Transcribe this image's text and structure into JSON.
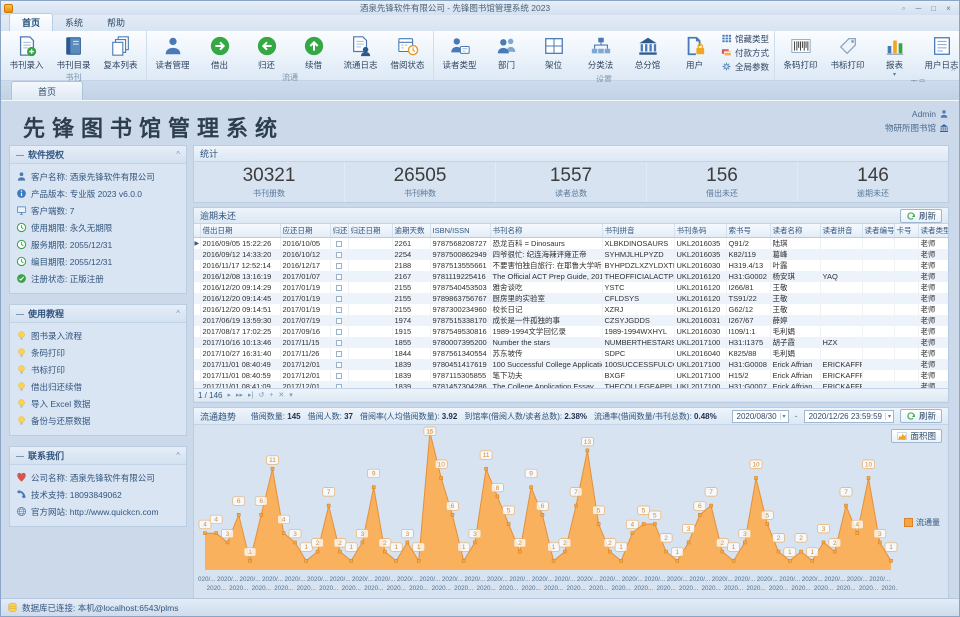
{
  "window": {
    "title": "酒泉先锋软件有限公司 - 先锋图书馆管理系统 2023",
    "controls": [
      {
        "name": "options",
        "glyph": "▫"
      },
      {
        "name": "minimize",
        "glyph": "─"
      },
      {
        "name": "maximize",
        "glyph": "□"
      },
      {
        "name": "close",
        "glyph": "×"
      }
    ]
  },
  "menu_tabs": [
    {
      "label": "首页",
      "active": true
    },
    {
      "label": "系统",
      "active": false
    },
    {
      "label": "帮助",
      "active": false
    }
  ],
  "ribbon": {
    "groups": [
      {
        "label": "书刊",
        "buttons": [
          {
            "label": "书刊录入",
            "icon": "doc-add"
          },
          {
            "label": "书刊目录",
            "icon": "book"
          },
          {
            "label": "复本列表",
            "icon": "copies"
          }
        ]
      },
      {
        "label": "流通",
        "buttons": [
          {
            "label": "读者管理",
            "icon": "reader"
          },
          {
            "label": "借出",
            "icon": "lend"
          },
          {
            "label": "归还",
            "icon": "return"
          },
          {
            "label": "续借",
            "icon": "renew"
          },
          {
            "label": "流通日志",
            "icon": "doc-log"
          },
          {
            "label": "借阅状态",
            "icon": "cal-clock"
          }
        ]
      },
      {
        "label": "设置",
        "buttons": [
          {
            "label": "读者类型",
            "icon": "person-card"
          },
          {
            "label": "部门",
            "icon": "people"
          },
          {
            "label": "架位",
            "icon": "shelf"
          },
          {
            "label": "分类法",
            "icon": "sitemap"
          },
          {
            "label": "总分馆",
            "icon": "bank"
          },
          {
            "label": "用户",
            "icon": "user-lock"
          }
        ],
        "small_buttons": [
          {
            "label": "馆藏类型",
            "icon": "grid"
          },
          {
            "label": "付款方式",
            "icon": "pay"
          },
          {
            "label": "全局参数",
            "icon": "gear"
          }
        ]
      },
      {
        "label": "工具",
        "buttons": [
          {
            "label": "条码打印",
            "icon": "barcode"
          },
          {
            "label": "书标打印",
            "icon": "tag"
          },
          {
            "label": "报表",
            "icon": "bars",
            "dropdown": true
          },
          {
            "label": "用户日志",
            "icon": "log"
          },
          {
            "label": "界面主题",
            "icon": "theme",
            "dropdown": true
          },
          {
            "label": "退出系统",
            "icon": "exit"
          }
        ]
      }
    ]
  },
  "doc_tab": "首页",
  "page": {
    "title": "先锋图书馆管理系统",
    "user": "Admin",
    "library": "物研所图书馆"
  },
  "sidebar": {
    "panels": [
      {
        "title": "软件授权",
        "rows": [
          {
            "icon": "reader",
            "label": "客户名称:",
            "value": "酒泉先锋软件有限公司"
          },
          {
            "icon": "info",
            "label": "产品版本:",
            "value": "专业版 2023 v6.0.0"
          },
          {
            "icon": "monitor",
            "label": "客户端数:",
            "value": "7"
          },
          {
            "icon": "clock",
            "label": "使用期限:",
            "value": "永久无期限"
          },
          {
            "icon": "clock",
            "label": "服务期限:",
            "value": "2055/12/31"
          },
          {
            "icon": "clock",
            "label": "编目期限:",
            "value": "2055/12/31"
          },
          {
            "icon": "check",
            "label": "注册状态:",
            "value": "正版注册"
          }
        ]
      },
      {
        "title": "使用教程",
        "rows": [
          {
            "icon": "bulb",
            "label": "图书录入流程",
            "value": ""
          },
          {
            "icon": "bulb",
            "label": "条码打印",
            "value": ""
          },
          {
            "icon": "bulb",
            "label": "书标打印",
            "value": ""
          },
          {
            "icon": "bulb",
            "label": "借出归还续借",
            "value": ""
          },
          {
            "icon": "bulb",
            "label": "导入 Excel 数据",
            "value": ""
          },
          {
            "icon": "bulb",
            "label": "备份与还原数据",
            "value": ""
          }
        ]
      },
      {
        "title": "联系我们",
        "rows": [
          {
            "icon": "heart",
            "label": "公司名称:",
            "value": "酒泉先锋软件有限公司"
          },
          {
            "icon": "phone",
            "label": "技术支持:",
            "value": "18093849062"
          },
          {
            "icon": "globe",
            "label": "官方网站:",
            "value": "http://www.quickcn.com"
          }
        ]
      }
    ]
  },
  "stats": {
    "title": "统计",
    "items": [
      {
        "value": "30321",
        "label": "书刊册数"
      },
      {
        "value": "26505",
        "label": "书刊种数"
      },
      {
        "value": "1557",
        "label": "读者总数"
      },
      {
        "value": "156",
        "label": "借出未还"
      },
      {
        "value": "146",
        "label": "逾期未还"
      }
    ]
  },
  "overdue": {
    "title": "逾期未还",
    "refresh_label": "刷新",
    "columns": [
      "借出日期",
      "应还日期",
      "归还",
      "归还日期",
      "逾期天数",
      "ISBN/ISSN",
      "书刊名称",
      "书刊拼音",
      "书刊条码",
      "索书号",
      "读者名称",
      "读者拼音",
      "读者编号",
      "卡号",
      "读者类型"
    ],
    "rows": [
      [
        "2016/09/05 15:22:26",
        "2016/10/05",
        "",
        "",
        "2261",
        "9787568208727",
        "恐龙百科 = Dinosaurs",
        "XLBKDINOSAURS",
        "UKL2016035",
        "Q91/2",
        "陆琪",
        "",
        "",
        "",
        "老师"
      ],
      [
        "2016/09/12 14:33:20",
        "2016/10/12",
        "",
        "",
        "2254",
        "9787500862949",
        "四爷很忙: 纪连海辣评雍正帝",
        "SYHMJLHLPYZD",
        "UKL2016035",
        "K82/119",
        "葛峰",
        "",
        "",
        "",
        "老师"
      ],
      [
        "2016/11/17 12:52:14",
        "2016/12/17",
        "",
        "",
        "2188",
        "9787513555661",
        "不要害怕独自旅行: 在耶鲁大学听名人演讲",
        "BYHPDZLXZYLDXTMRYJ",
        "UKL2016030",
        "H319.4/13",
        "叶露",
        "",
        "",
        "",
        "老师"
      ],
      [
        "2016/12/08 13:16:19",
        "2017/01/07",
        "",
        "",
        "2167",
        "9781119225416",
        "The Official ACT Prep Guide, 2016 - 2017",
        "THEOFFICIALACTPREPGU",
        "UKL2016120",
        "H31:G0002",
        "杨安琪",
        "YAQ",
        "",
        "",
        "老师"
      ],
      [
        "2016/12/20 09:14:29",
        "2017/01/19",
        "",
        "",
        "2155",
        "9787540453503",
        "雅舍谈吃",
        "YSTC",
        "UKL2016120",
        "I266/81",
        "王敬",
        "",
        "",
        "",
        "老师"
      ],
      [
        "2016/12/20 09:14:45",
        "2017/01/19",
        "",
        "",
        "2155",
        "9789863756767",
        "厨房里的实验室",
        "CFLDSYS",
        "UKL2016120",
        "TS91/22",
        "王敬",
        "",
        "",
        "",
        "老师"
      ],
      [
        "2016/12/20 09:14:51",
        "2017/01/19",
        "",
        "",
        "2155",
        "9787300234960",
        "校长日记",
        "XZRJ",
        "UKL2016120",
        "G62/12",
        "王敬",
        "",
        "",
        "",
        "老师"
      ],
      [
        "2017/06/19 13:59:30",
        "2017/07/19",
        "",
        "",
        "1974",
        "9787515338170",
        "成长是一件孤独的事",
        "CZSYJGDDS",
        "UKL2016031",
        "I267/67",
        "薛婷",
        "",
        "",
        "",
        "老师"
      ],
      [
        "2017/08/17 17:02:25",
        "2017/09/16",
        "",
        "",
        "1915",
        "9787549530816",
        "1989-1994文学回忆录",
        "1989-1994WXHYL",
        "UKL2016030",
        "I109/1:1",
        "毛利娟",
        "",
        "",
        "",
        "老师"
      ],
      [
        "2017/10/16 10:13:46",
        "2017/11/15",
        "",
        "",
        "1855",
        "9780007395200",
        "Number the stars",
        "NUMBERTHESTARS",
        "UKL2017100",
        "H31:I1375",
        "胡子霞",
        "HZX",
        "",
        "",
        "老师"
      ],
      [
        "2017/10/27 16:31:40",
        "2017/11/26",
        "",
        "",
        "1844",
        "9787561340554",
        "苏东坡传",
        "SDPC",
        "UKL2016040",
        "K825/88",
        "毛利娟",
        "",
        "",
        "",
        "老师"
      ],
      [
        "2017/11/01 08:40:49",
        "2017/12/01",
        "",
        "",
        "1839",
        "9780451417619",
        "100 Successful College Application Essays",
        "100SUCCESSFULCOLLEGE",
        "UKL2017100",
        "H31:G0008",
        "Erick Affrian",
        "ERICKAFFRIA",
        "",
        "",
        "老师"
      ],
      [
        "2017/11/01 08:40:59",
        "2017/12/01",
        "",
        "",
        "1839",
        "9787115305855",
        "笔下功夫",
        "BXGF",
        "UKL2017100",
        "H15/2",
        "Erick Affrian",
        "ERICKAFFRIA",
        "",
        "",
        "老师"
      ],
      [
        "2017/11/01 08:41:09",
        "2017/12/01",
        "",
        "",
        "1839",
        "9781457304286",
        "The College Application Essay",
        "THECOLLEGEAPPLICATIO",
        "UKL2017100",
        "H31:G0007",
        "Erick Affrian",
        "ERICKAFFRIA",
        "",
        "",
        "老师"
      ],
      [
        "2017/11/01 08:41:15",
        "2017/12/01",
        "",
        "",
        "1839",
        "9780062123992",
        "ON WRITING THE COLLEGE APPLICATION ES",
        "ONWRITINGTHECOLLEGEA",
        "UKL2017100",
        "H31:H0019",
        "Erick Affrian",
        "ERICKAFFRIA",
        "",
        "",
        "老师"
      ],
      [
        "2017/11/01 08:41:25",
        "2017/12/01",
        "",
        "",
        "1839",
        "9780804125789",
        "College Essays That Made A Difference",
        "COLLEGEESSAYSTHATMAD",
        "UKL2017100",
        "H31:G0006",
        "Erick Affrian",
        "ERICKAFFRIA",
        "",
        "",
        "老师"
      ]
    ],
    "pager": {
      "position": "1 / 146",
      "icons": [
        "▸",
        "▸▸",
        "▸|",
        "↺",
        "+",
        "✕",
        "▾"
      ]
    }
  },
  "trend": {
    "title": "流通趋势",
    "summary": [
      {
        "label": "借阅数量:",
        "value": "145"
      },
      {
        "label": "借阅人数:",
        "value": "37"
      },
      {
        "label": "借阅率(人均借阅数量):",
        "value": "3.92"
      },
      {
        "label": "到馆率(借阅人数/读者总数):",
        "value": "2.38%"
      },
      {
        "label": "流通率(借阅数量/书刊总数):",
        "value": "0.48%"
      }
    ],
    "date_from": "2020/08/30",
    "date_to": "2020/12/26 23:59:59",
    "refresh_label": "刷新",
    "chart_type_button": "面积图",
    "legend": "流通量"
  },
  "chart_data": {
    "type": "area",
    "title": "流通趋势",
    "series": [
      {
        "name": "流通量",
        "values": [
          4,
          4,
          3,
          6,
          1,
          6,
          11,
          4,
          3,
          1,
          2,
          7,
          2,
          1,
          3,
          9,
          2,
          1,
          3,
          1,
          15,
          10,
          6,
          1,
          3,
          11,
          8,
          5,
          2,
          9,
          6,
          1,
          2,
          7,
          13,
          5,
          2,
          1,
          4,
          5,
          5,
          2,
          1,
          3,
          6,
          7,
          2,
          1,
          3,
          10,
          5,
          2,
          1,
          2,
          1,
          3,
          2,
          7,
          4,
          10,
          3,
          1
        ]
      }
    ],
    "x_range": [
      "2020/08/30",
      "2020/12/26 23:59:59"
    ],
    "x_tick_display": [
      "2020/...",
      "2020..."
    ],
    "ylim": [
      0,
      16
    ],
    "grid": false,
    "point_labels": true,
    "legend_position": "right"
  },
  "status_bar": {
    "text": "数据库已连接: 本机@localhost:6543/plms"
  },
  "colors": {
    "accent_orange": "#f6a63d",
    "accent_green": "#3aa148",
    "accent_blue": "#4a7ab5",
    "chart_area": "#fbae55",
    "chart_stroke": "#e49038"
  }
}
